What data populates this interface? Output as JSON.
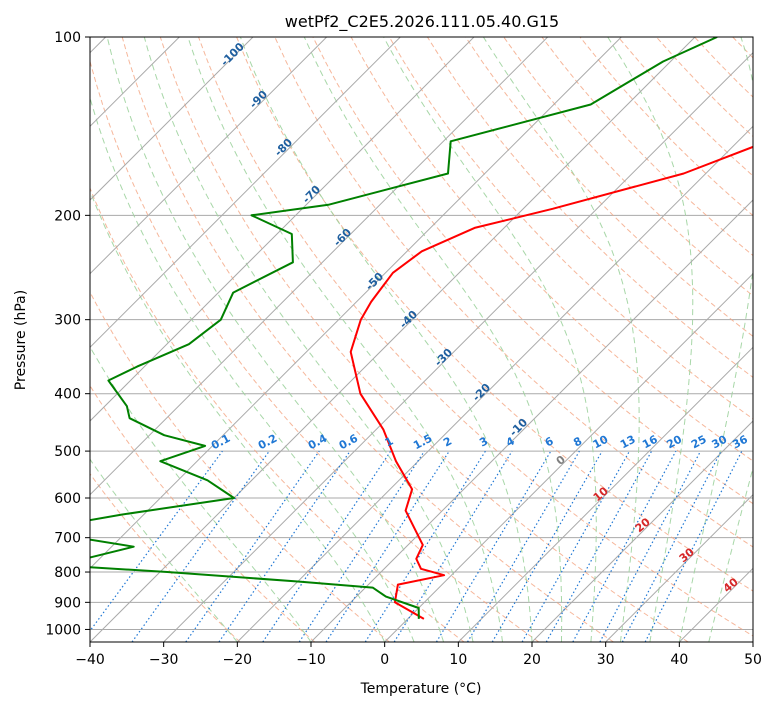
{
  "chart_data": {
    "type": "line",
    "title": "wetPf2_C2E5.2026.111.05.40.G15",
    "xlabel": "Temperature (°C)",
    "ylabel": "Pressure (hPa)",
    "xlim": [
      -40,
      50
    ],
    "ylim": [
      1050,
      100
    ],
    "y_scale": "log",
    "skew": true,
    "grid": true,
    "x_ticks": [
      -40,
      -30,
      -20,
      -10,
      0,
      10,
      20,
      30,
      40,
      50
    ],
    "y_ticks": [
      1000,
      900,
      800,
      700,
      600,
      500,
      400,
      300,
      200,
      100
    ],
    "colors": {
      "temperature": "#ff0000",
      "dewpoint": "#008000",
      "isotherm": "#aaaaaa",
      "dry_adiabat": "#f4a582",
      "moist_adiabat": "#9fd39f",
      "mixing_ratio": "#1f77d4",
      "isotherm_label": "#1f5f9f",
      "moist_label": "#d62728",
      "dry_label_zero": "#7f7f7f"
    },
    "series": [
      {
        "key": "temperature",
        "points": [
          [
            -7.5,
            100
          ],
          [
            -9,
            110
          ],
          [
            -14,
            130
          ],
          [
            -16,
            150
          ],
          [
            -23,
            170
          ],
          [
            -36,
            195
          ],
          [
            -44,
            210
          ],
          [
            -48,
            230
          ],
          [
            -49,
            250
          ],
          [
            -48,
            280
          ],
          [
            -47,
            300
          ],
          [
            -44,
            340
          ],
          [
            -37,
            400
          ],
          [
            -29,
            460
          ],
          [
            -23,
            520
          ],
          [
            -17,
            580
          ],
          [
            -15,
            630
          ],
          [
            -11,
            680
          ],
          [
            -8,
            720
          ],
          [
            -7,
            760
          ],
          [
            -5,
            790
          ],
          [
            -1,
            810
          ],
          [
            -6,
            840
          ],
          [
            -4,
            900
          ],
          [
            2.2,
            960
          ]
        ]
      },
      {
        "key": "dewpoint",
        "points": [
          [
            -37,
            100
          ],
          [
            -41,
            110
          ],
          [
            -45,
            130
          ],
          [
            -59,
            150
          ],
          [
            -55,
            170
          ],
          [
            -67,
            192
          ],
          [
            -76,
            200
          ],
          [
            -68,
            215
          ],
          [
            -64,
            240
          ],
          [
            -68,
            270
          ],
          [
            -66,
            300
          ],
          [
            -67,
            330
          ],
          [
            -71,
            360
          ],
          [
            -73,
            380
          ],
          [
            -67,
            420
          ],
          [
            -65,
            440
          ],
          [
            -58,
            470
          ],
          [
            -51,
            490
          ],
          [
            -55,
            520
          ],
          [
            -46,
            560
          ],
          [
            -40,
            600
          ],
          [
            -53,
            640
          ],
          [
            -63,
            680
          ],
          [
            -47,
            725
          ],
          [
            -52,
            760
          ],
          [
            -58,
            775
          ],
          [
            -39,
            800
          ],
          [
            -20,
            830
          ],
          [
            -9,
            850
          ],
          [
            -6,
            880
          ],
          [
            0,
            920
          ],
          [
            1.5,
            960
          ]
        ]
      }
    ],
    "isotherm_labels": [
      "-100",
      "-90",
      "-80",
      "-70",
      "-60",
      "-50",
      "-40",
      "-30",
      "-20",
      "-10"
    ],
    "mixing_ratio_labels": [
      "0.1",
      "0.2",
      "0.4",
      "0.6",
      "1",
      "1.5",
      "2",
      "3",
      "4",
      "6",
      "8",
      "10",
      "13",
      "16",
      "20",
      "25",
      "30",
      "36"
    ],
    "moist_adiabat_labels": [
      "0",
      "10",
      "20",
      "30",
      "40"
    ]
  }
}
